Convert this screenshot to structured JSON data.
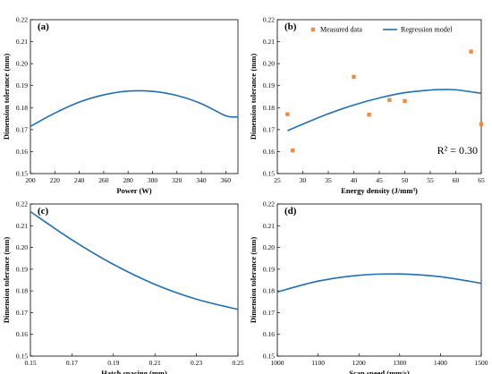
{
  "chart_data": [
    {
      "panel": "(a)",
      "type": "line",
      "xlabel": "Power (W)",
      "ylabel": "Dimension tolerance (mm)",
      "xlim": [
        200,
        370
      ],
      "ylim": [
        0.15,
        0.22
      ],
      "x_ticks": [
        "200",
        "220",
        "240",
        "260",
        "280",
        "300",
        "320",
        "340",
        "360"
      ],
      "y_ticks": [
        "0.15",
        "0.16",
        "0.17",
        "0.18",
        "0.19",
        "0.20",
        "0.21",
        "0.22"
      ],
      "series": [
        {
          "x": [
            200,
            220,
            240,
            260,
            280,
            300,
            320,
            340,
            360,
            370
          ],
          "y": [
            0.1715,
            0.1775,
            0.1825,
            0.1858,
            0.1875,
            0.1874,
            0.1855,
            0.1818,
            0.1763,
            0.1758
          ]
        }
      ]
    },
    {
      "panel": "(b)",
      "type": "scatter",
      "xlabel": "Energy density (J/mm³)",
      "ylabel": "Dimension tolerance (mm)",
      "xlim": [
        25,
        65
      ],
      "ylim": [
        0.15,
        0.22
      ],
      "x_ticks": [
        "25",
        "30",
        "35",
        "40",
        "45",
        "50",
        "55",
        "60",
        "65"
      ],
      "y_ticks": [
        "0.15",
        "0.16",
        "0.17",
        "0.18",
        "0.19",
        "0.20",
        "0.21",
        "0.22"
      ],
      "legend_position": "top",
      "annotation": "R² = 0.30",
      "series": [
        {
          "name": "Measured data",
          "style": "markers",
          "x": [
            27,
            28,
            40,
            43,
            47,
            50,
            63,
            65
          ],
          "y": [
            0.177,
            0.1605,
            0.194,
            0.1768,
            0.1835,
            0.183,
            0.2055,
            0.1725
          ]
        },
        {
          "name": "Regression model",
          "style": "line",
          "x": [
            27,
            30,
            35,
            40,
            45,
            50,
            55,
            57,
            60,
            65
          ],
          "y": [
            0.1695,
            0.1725,
            0.1772,
            0.1812,
            0.1844,
            0.1868,
            0.188,
            0.1882,
            0.1881,
            0.1865
          ]
        }
      ]
    },
    {
      "panel": "(c)",
      "type": "line",
      "xlabel": "Hatch spacing (mm)",
      "ylabel": "Dimension tolerance (mm)",
      "xlim": [
        0.15,
        0.25
      ],
      "ylim": [
        0.15,
        0.22
      ],
      "x_ticks": [
        "0.15",
        "0.17",
        "0.19",
        "0.21",
        "0.23",
        "0.25"
      ],
      "y_ticks": [
        "0.15",
        "0.16",
        "0.17",
        "0.18",
        "0.19",
        "0.20",
        "0.21",
        "0.22"
      ],
      "series": [
        {
          "x": [
            0.15,
            0.17,
            0.19,
            0.21,
            0.23,
            0.25
          ],
          "y": [
            0.2165,
            0.2035,
            0.1922,
            0.183,
            0.1762,
            0.1715
          ]
        }
      ]
    },
    {
      "panel": "(d)",
      "type": "line",
      "xlabel": "Scan speed (mm/s)",
      "ylabel": "Dimension tolerance (mm)",
      "xlim": [
        1000,
        1500
      ],
      "ylim": [
        0.15,
        0.22
      ],
      "x_ticks": [
        "1000",
        "1100",
        "1200",
        "1300",
        "1400",
        "1500"
      ],
      "y_ticks": [
        "0.15",
        "0.16",
        "0.17",
        "0.18",
        "0.19",
        "0.20",
        "0.21",
        "0.22"
      ],
      "series": [
        {
          "x": [
            1000,
            1100,
            1200,
            1300,
            1400,
            1500
          ],
          "y": [
            0.1795,
            0.1845,
            0.1872,
            0.1878,
            0.1865,
            0.1835
          ]
        }
      ]
    }
  ],
  "colors": {
    "line": "#1f6eb4",
    "marker": "#f08a3c",
    "axis": "#000000"
  }
}
